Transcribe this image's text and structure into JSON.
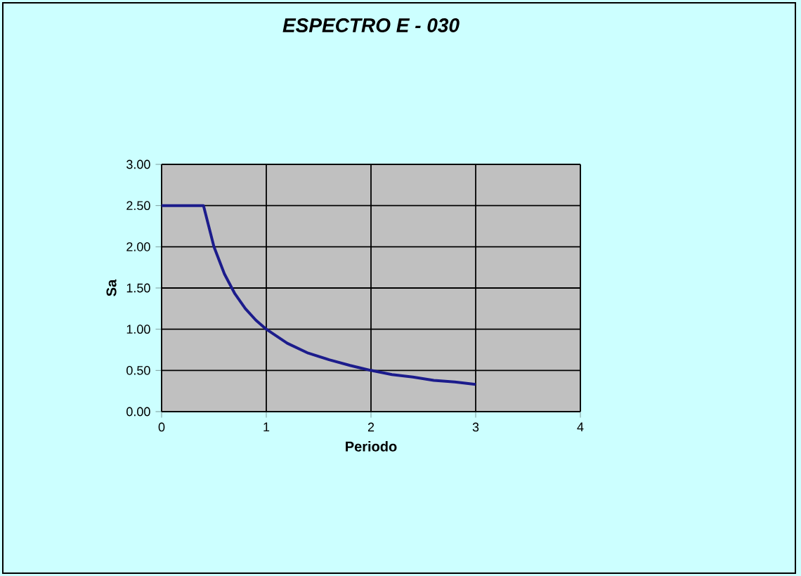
{
  "chart_data": {
    "type": "line",
    "title": "ESPECTRO E - 030",
    "xlabel": "Periodo",
    "ylabel": "Sa",
    "x": [
      0,
      0.4,
      0.5,
      0.6,
      0.7,
      0.8,
      0.9,
      1,
      1.2,
      1.4,
      1.6,
      1.8,
      2,
      2.2,
      2.4,
      2.6,
      2.8,
      3
    ],
    "series": [
      {
        "color": "#1c1c8c",
        "values": [
          2.5,
          2.5,
          2.0,
          1.67,
          1.43,
          1.25,
          1.11,
          1.0,
          0.83,
          0.71,
          0.63,
          0.56,
          0.5,
          0.45,
          0.42,
          0.38,
          0.36,
          0.33
        ]
      }
    ],
    "xlim": [
      0,
      4
    ],
    "ylim": [
      0,
      3
    ],
    "xticks": [
      0,
      1,
      2,
      3,
      4
    ],
    "yticks": [
      {
        "value": 0,
        "label": "0.00"
      },
      {
        "value": 0.5,
        "label": "0.50"
      },
      {
        "value": 1,
        "label": "1.00"
      },
      {
        "value": 1.5,
        "label": "1.50"
      },
      {
        "value": 2,
        "label": "2.00"
      },
      {
        "value": 2.5,
        "label": "2.50"
      },
      {
        "value": 3,
        "label": "3.00"
      }
    ],
    "grid": true,
    "marker": "none",
    "line_style": "solid"
  }
}
